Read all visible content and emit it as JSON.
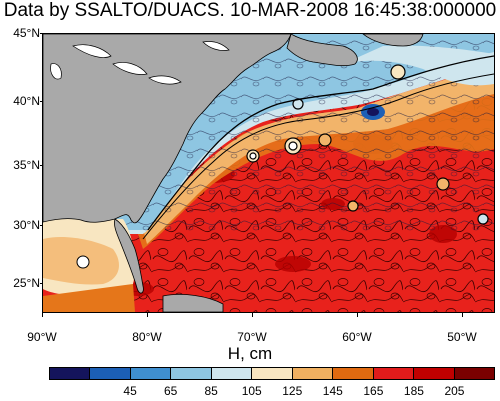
{
  "title": "Data by SSALTO/DUACS. 10-MAR-2008 16:45:38:000000",
  "xlabel": "H, cm",
  "lat_labels": [
    "45°N",
    "40°N",
    "35°N",
    "30°N",
    "25°N"
  ],
  "lon_labels": [
    "90°W",
    "80°W",
    "70°W",
    "60°W",
    "50°W"
  ],
  "colorbar": {
    "colors": [
      "#14145c",
      "#1c5fb5",
      "#3f8fd0",
      "#8ec6e2",
      "#cfe6ee",
      "#f8e6c1",
      "#f0b060",
      "#e06a10",
      "#e11b1b",
      "#c00000",
      "#7a0000"
    ],
    "labels": [
      "45",
      "65",
      "85",
      "105",
      "125",
      "145",
      "165",
      "185",
      "205"
    ]
  }
}
